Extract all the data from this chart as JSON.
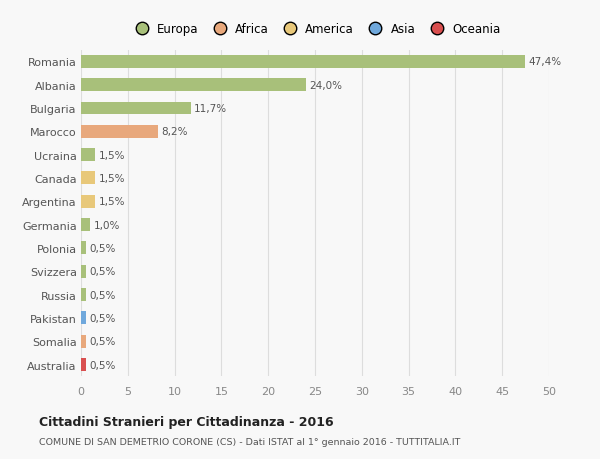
{
  "countries": [
    "Romania",
    "Albania",
    "Bulgaria",
    "Marocco",
    "Ucraina",
    "Canada",
    "Argentina",
    "Germania",
    "Polonia",
    "Svizzera",
    "Russia",
    "Pakistan",
    "Somalia",
    "Australia"
  ],
  "values": [
    47.4,
    24.0,
    11.7,
    8.2,
    1.5,
    1.5,
    1.5,
    1.0,
    0.5,
    0.5,
    0.5,
    0.5,
    0.5,
    0.5
  ],
  "labels": [
    "47,4%",
    "24,0%",
    "11,7%",
    "8,2%",
    "1,5%",
    "1,5%",
    "1,5%",
    "1,0%",
    "0,5%",
    "0,5%",
    "0,5%",
    "0,5%",
    "0,5%",
    "0,5%"
  ],
  "colors": [
    "#a8c07a",
    "#a8c07a",
    "#a8c07a",
    "#e8a87c",
    "#a8c07a",
    "#e8c87a",
    "#e8c87a",
    "#a8c07a",
    "#a8c07a",
    "#a8c07a",
    "#a8c07a",
    "#6fa8dc",
    "#e8a87c",
    "#d94f4f"
  ],
  "legend_labels": [
    "Europa",
    "Africa",
    "America",
    "Asia",
    "Oceania"
  ],
  "legend_colors": [
    "#a8c07a",
    "#e8a87c",
    "#e8c87a",
    "#6fa8dc",
    "#d94f4f"
  ],
  "xlim": [
    0,
    50
  ],
  "xticks": [
    0,
    5,
    10,
    15,
    20,
    25,
    30,
    35,
    40,
    45,
    50
  ],
  "title": "Cittadini Stranieri per Cittadinanza - 2016",
  "subtitle": "COMUNE DI SAN DEMETRIO CORONE (CS) - Dati ISTAT al 1° gennaio 2016 - TUTTITALIA.IT",
  "bg_color": "#f8f8f8",
  "grid_color": "#dddddd",
  "bar_height": 0.55
}
